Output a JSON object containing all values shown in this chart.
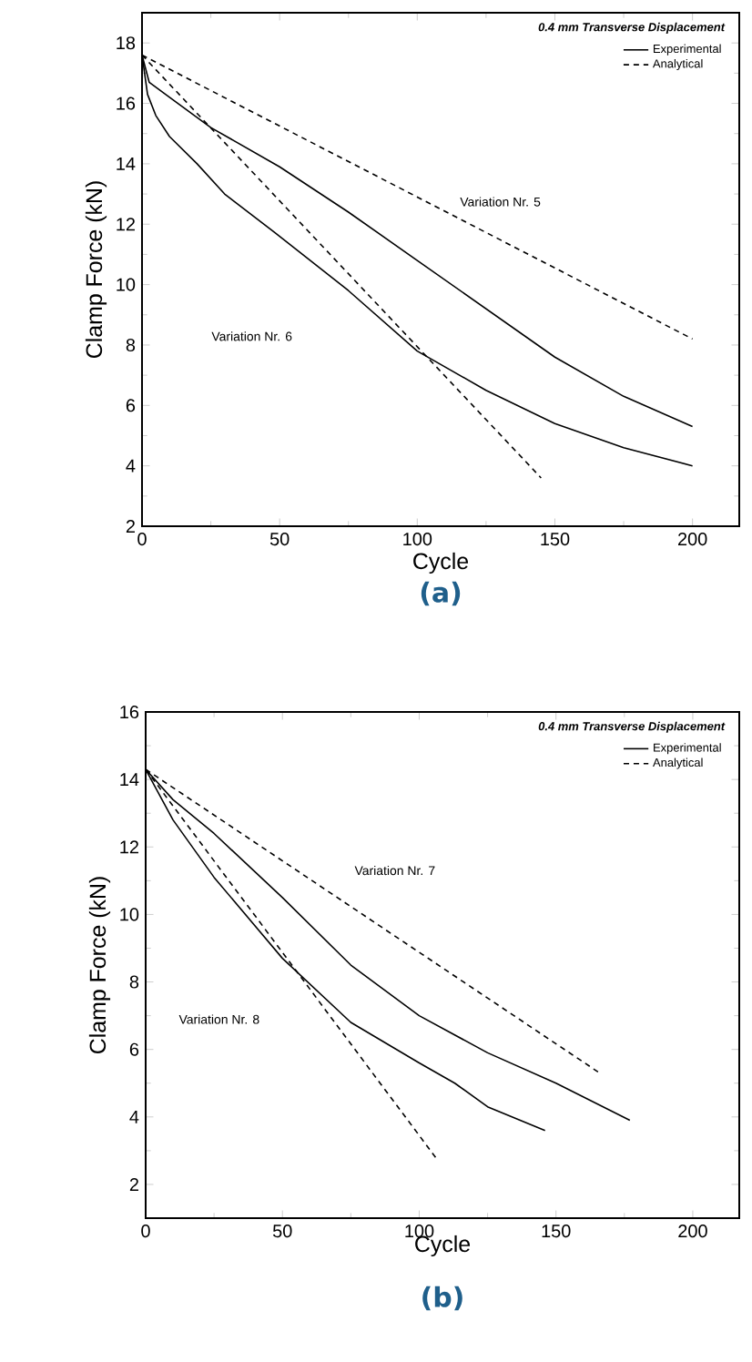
{
  "chart_data": [
    {
      "type": "line",
      "xlabel": "Cycle",
      "ylabel": "Clamp Force (kN)",
      "legend_title": "*0.4 mm Transverse Displacement*",
      "legend": "top right",
      "xlim": [
        0,
        217
      ],
      "ylim": [
        2,
        19
      ],
      "xticks": [
        0,
        50,
        100,
        150,
        200
      ],
      "yticks": [
        2,
        4,
        6,
        8,
        10,
        12,
        14,
        16,
        18
      ],
      "series": [
        {
          "name": "Experimental",
          "color": "#000000",
          "line_style": "solid",
          "x": [
            0,
            2.6,
            10,
            25,
            50,
            75,
            100,
            125,
            150,
            175,
            200
          ],
          "values": [
            17.6,
            16.7,
            16.2,
            15.2,
            13.9,
            12.4,
            10.8,
            9.2,
            7.6,
            6.3,
            5.3
          ]
        },
        {
          "name": "Analytical",
          "color": "#000000",
          "line_style": "dashed",
          "x": [
            0,
            200
          ],
          "values": [
            17.6,
            8.2
          ]
        },
        {
          "color": "#000000",
          "line_style": "solid",
          "x": [
            0,
            2,
            5,
            10,
            20,
            30,
            50,
            75,
            100,
            125,
            150,
            175,
            200
          ],
          "values": [
            17.6,
            16.3,
            15.6,
            14.9,
            14.0,
            13.0,
            11.6,
            9.8,
            7.8,
            6.5,
            5.4,
            4.6,
            4.0
          ]
        },
        {
          "color": "#000000",
          "line_style": "dashed",
          "x": [
            0,
            145
          ],
          "values": [
            17.6,
            3.6
          ]
        }
      ],
      "annotations": [
        "Variation Nr. 5",
        "Variation Nr. 6",
        "**(a)**"
      ]
    },
    {
      "type": "line",
      "xlabel": "Cycle",
      "ylabel": "Clamp Force (kN)",
      "legend_title": "*0.4 mm Transverse Displacement*",
      "legend": "top right",
      "xlim": [
        0,
        217
      ],
      "ylim": [
        1,
        16
      ],
      "xticks": [
        0,
        50,
        100,
        150,
        200
      ],
      "yticks": [
        2,
        4,
        6,
        8,
        10,
        12,
        14,
        16
      ],
      "series": [
        {
          "name": "Experimental",
          "color": "#000000",
          "line_style": "solid",
          "x": [
            0,
            10,
            25,
            50,
            75,
            100,
            125,
            150,
            177
          ],
          "values": [
            14.3,
            13.4,
            12.4,
            10.5,
            8.5,
            7.0,
            5.9,
            5.0,
            3.9
          ]
        },
        {
          "name": "Analytical",
          "color": "#000000",
          "line_style": "dashed",
          "x": [
            0,
            166
          ],
          "values": [
            14.3,
            5.3
          ]
        },
        {
          "color": "#000000",
          "line_style": "solid",
          "x": [
            0,
            10,
            25,
            50,
            75,
            100,
            113,
            125,
            146
          ],
          "values": [
            14.3,
            12.8,
            11.1,
            8.7,
            6.8,
            5.6,
            5.0,
            4.3,
            3.6
          ]
        },
        {
          "color": "#000000",
          "line_style": "dashed",
          "x": [
            0,
            106
          ],
          "values": [
            14.3,
            2.8
          ]
        }
      ],
      "annotations": [
        "Variation Nr. 7",
        "Variation Nr. 8",
        "**(b)**"
      ]
    }
  ]
}
